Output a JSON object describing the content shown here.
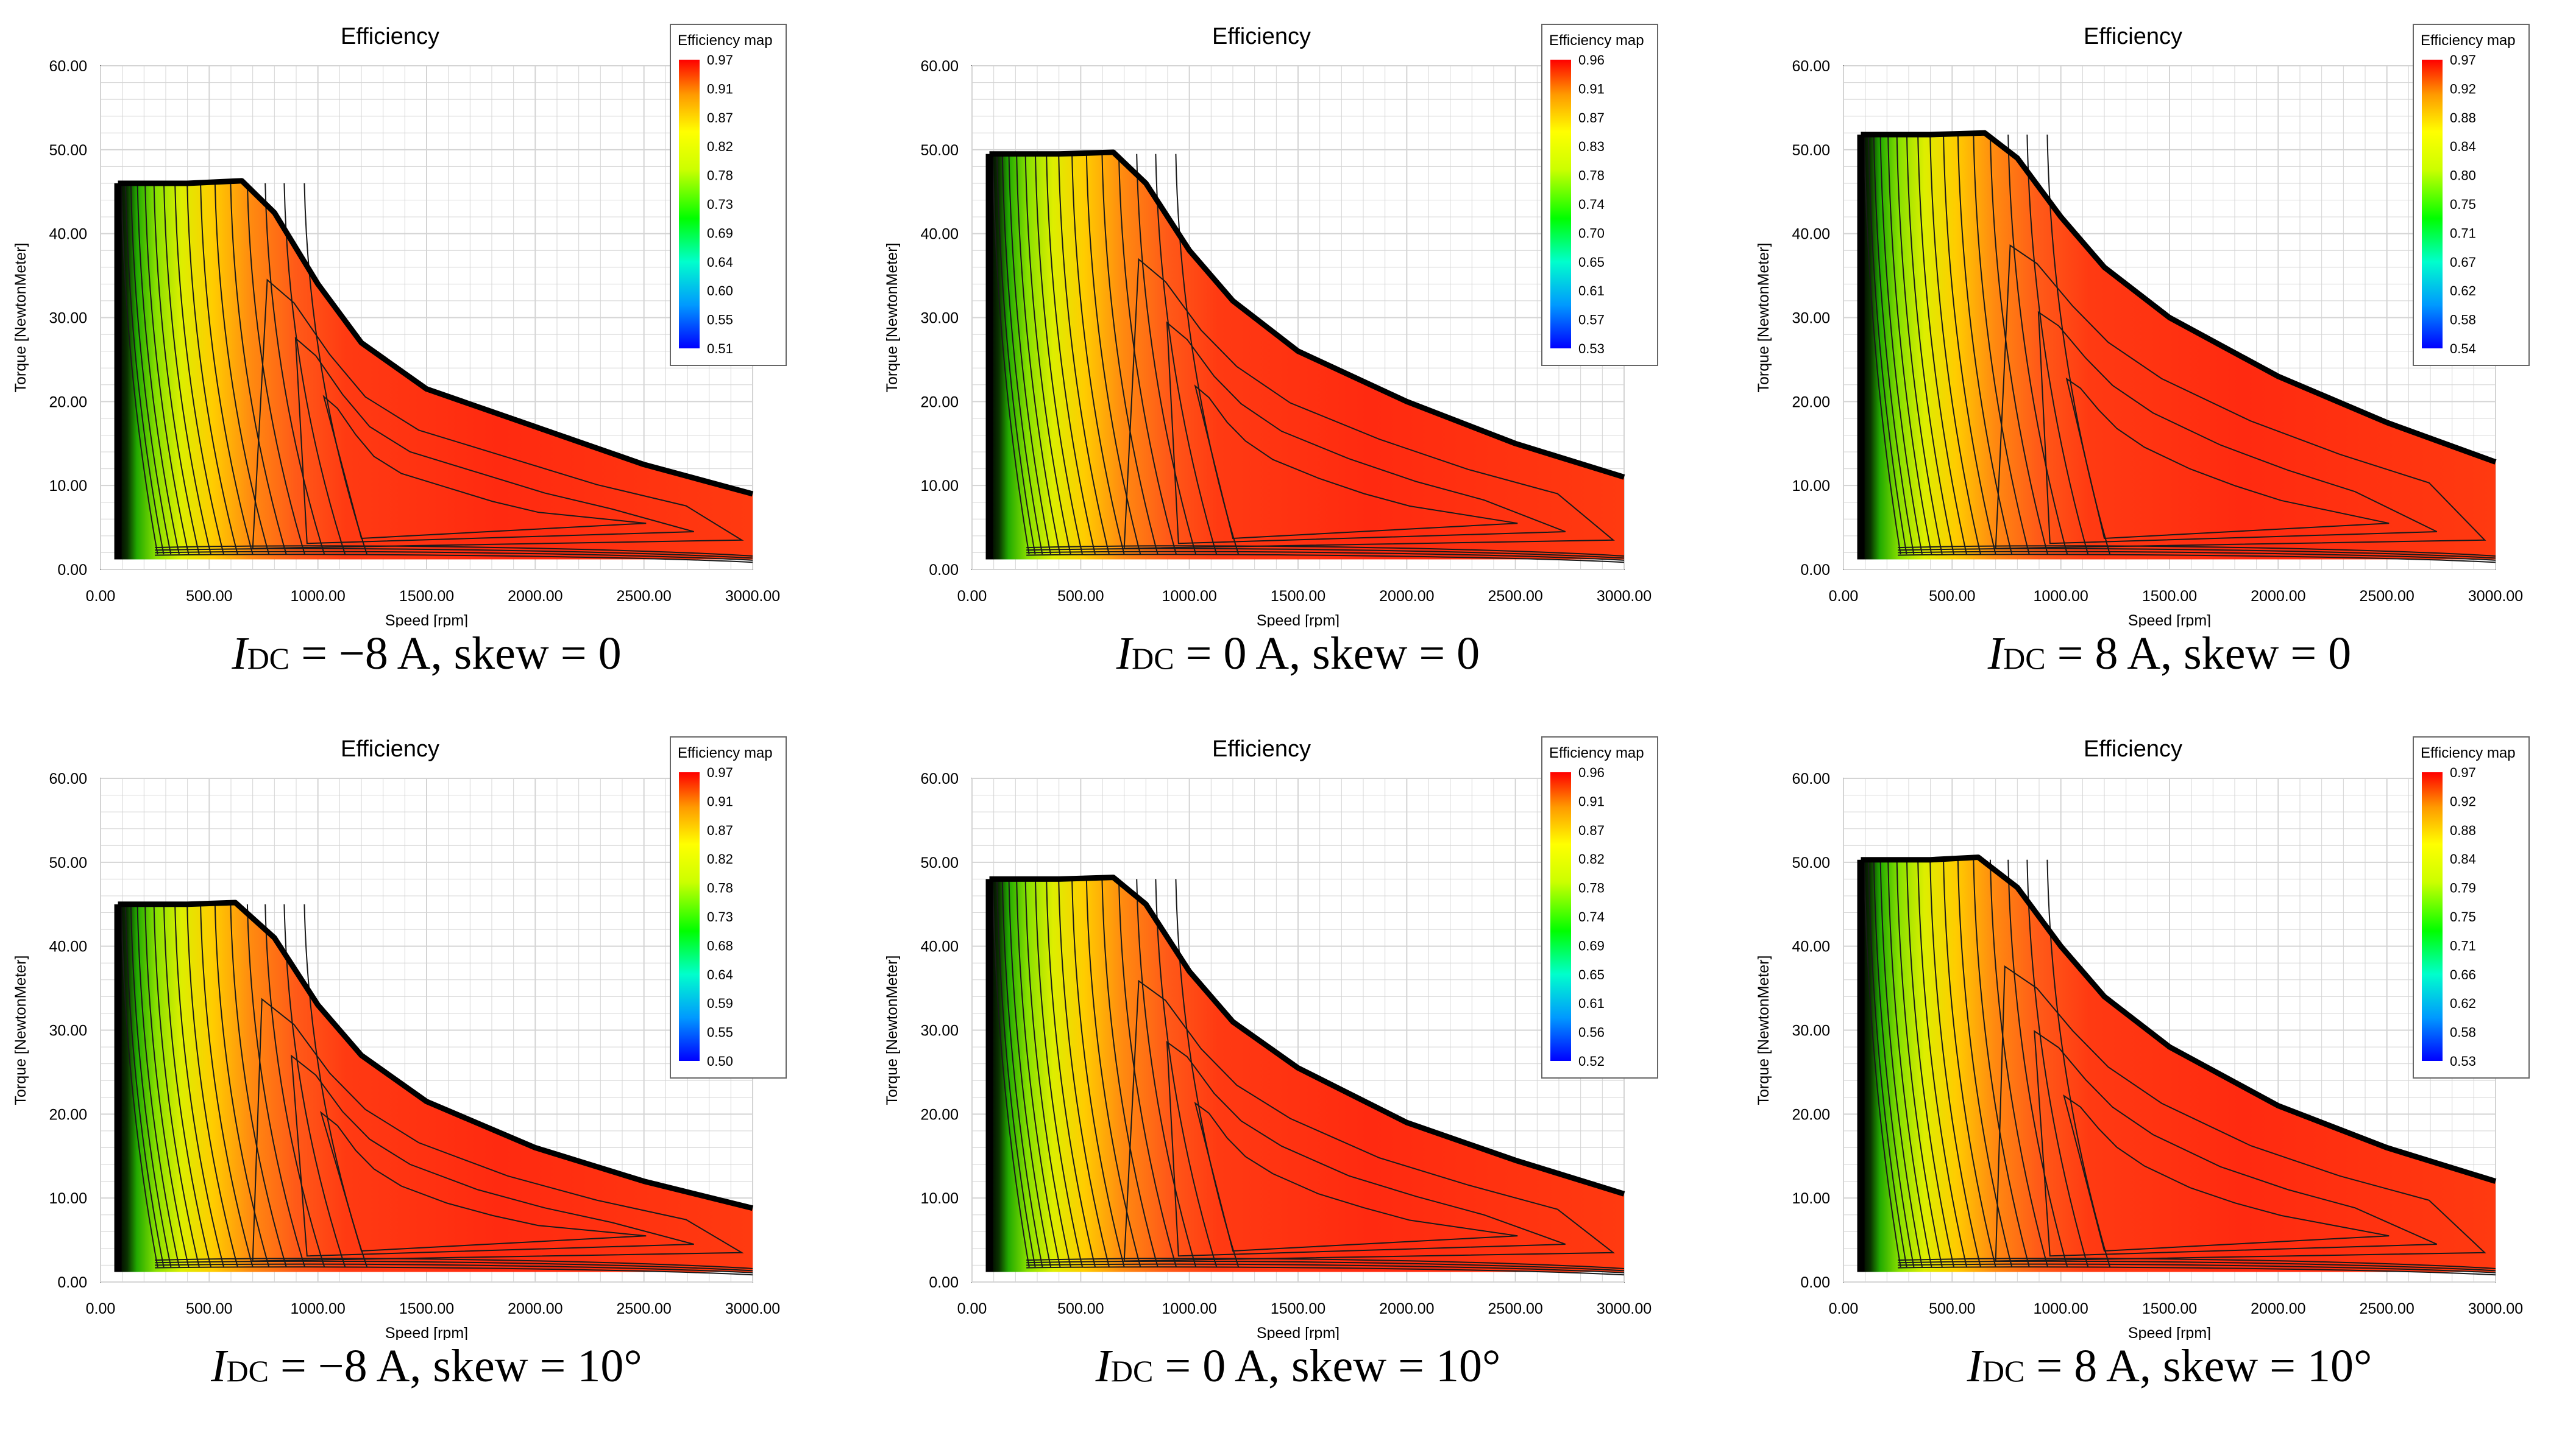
{
  "chart_data": [
    {
      "type": "heatmap",
      "title": "Efficiency",
      "xlabel": "Speed [rpm]",
      "ylabel": "Torque [NewtonMeter]",
      "xlim": [
        0,
        3000
      ],
      "ylim": [
        0,
        60
      ],
      "x_ticks": [
        "0.00",
        "500.00",
        "1000.00",
        "1500.00",
        "2000.00",
        "2500.00",
        "3000.00"
      ],
      "y_ticks": [
        "0.00",
        "10.00",
        "20.00",
        "30.00",
        "40.00",
        "50.00",
        "60.00"
      ],
      "legend_title": "Efficiency map",
      "legend_ticks": [
        "0.97",
        "0.91",
        "0.87",
        "0.82",
        "0.78",
        "0.73",
        "0.69",
        "0.64",
        "0.60",
        "0.55",
        "0.51"
      ],
      "legend_range": [
        0.51,
        0.97
      ],
      "max_torque_nm": 46,
      "torque_curve": [
        [
          80,
          46
        ],
        [
          400,
          46
        ],
        [
          650,
          46.3
        ],
        [
          800,
          42.5
        ],
        [
          1000,
          34
        ],
        [
          1200,
          27
        ],
        [
          1500,
          21.5
        ],
        [
          2000,
          17
        ],
        [
          2500,
          12.5
        ],
        [
          3000,
          9
        ]
      ],
      "caption": {
        "prefix": "I",
        "sub": "DC",
        "suffix": " = −8 A, skew = 0"
      }
    },
    {
      "type": "heatmap",
      "title": "Efficiency",
      "xlabel": "Speed [rpm]",
      "ylabel": "Torque [NewtonMeter]",
      "xlim": [
        0,
        3000
      ],
      "ylim": [
        0,
        60
      ],
      "x_ticks": [
        "0.00",
        "500.00",
        "1000.00",
        "1500.00",
        "2000.00",
        "2500.00",
        "3000.00"
      ],
      "y_ticks": [
        "0.00",
        "10.00",
        "20.00",
        "30.00",
        "40.00",
        "50.00",
        "60.00"
      ],
      "legend_title": "Efficiency map",
      "legend_ticks": [
        "0.96",
        "0.91",
        "0.87",
        "0.83",
        "0.78",
        "0.74",
        "0.70",
        "0.65",
        "0.61",
        "0.57",
        "0.53"
      ],
      "legend_range": [
        0.53,
        0.96
      ],
      "max_torque_nm": 49.5,
      "torque_curve": [
        [
          80,
          49.5
        ],
        [
          400,
          49.5
        ],
        [
          650,
          49.7
        ],
        [
          800,
          46
        ],
        [
          1000,
          38
        ],
        [
          1200,
          32
        ],
        [
          1500,
          26
        ],
        [
          2000,
          20
        ],
        [
          2500,
          15
        ],
        [
          3000,
          11
        ]
      ],
      "caption": {
        "prefix": "I",
        "sub": "DC",
        "suffix": " = 0 A, skew = 0"
      }
    },
    {
      "type": "heatmap",
      "title": "Efficiency",
      "xlabel": "Speed [rpm]",
      "ylabel": "Torque [NewtonMeter]",
      "xlim": [
        0,
        3000
      ],
      "ylim": [
        0,
        60
      ],
      "x_ticks": [
        "0.00",
        "500.00",
        "1000.00",
        "1500.00",
        "2000.00",
        "2500.00",
        "3000.00"
      ],
      "y_ticks": [
        "0.00",
        "10.00",
        "20.00",
        "30.00",
        "40.00",
        "50.00",
        "60.00"
      ],
      "legend_title": "Efficiency map",
      "legend_ticks": [
        "0.97",
        "0.92",
        "0.88",
        "0.84",
        "0.80",
        "0.75",
        "0.71",
        "0.67",
        "0.62",
        "0.58",
        "0.54"
      ],
      "legend_range": [
        0.54,
        0.97
      ],
      "max_torque_nm": 51.8,
      "torque_curve": [
        [
          80,
          51.8
        ],
        [
          400,
          51.8
        ],
        [
          650,
          52
        ],
        [
          800,
          49
        ],
        [
          1000,
          42
        ],
        [
          1200,
          36
        ],
        [
          1500,
          30
        ],
        [
          2000,
          23
        ],
        [
          2500,
          17.5
        ],
        [
          3000,
          12.8
        ]
      ],
      "caption": {
        "prefix": "I",
        "sub": "DC",
        "suffix": " = 8 A, skew = 0"
      }
    },
    {
      "type": "heatmap",
      "title": "Efficiency",
      "xlabel": "Speed [rpm]",
      "ylabel": "Torque [NewtonMeter]",
      "xlim": [
        0,
        3000
      ],
      "ylim": [
        0,
        60
      ],
      "x_ticks": [
        "0.00",
        "500.00",
        "1000.00",
        "1500.00",
        "2000.00",
        "2500.00",
        "3000.00"
      ],
      "y_ticks": [
        "0.00",
        "10.00",
        "20.00",
        "30.00",
        "40.00",
        "50.00",
        "60.00"
      ],
      "legend_title": "Efficiency map",
      "legend_ticks": [
        "0.97",
        "0.91",
        "0.87",
        "0.82",
        "0.78",
        "0.73",
        "0.68",
        "0.64",
        "0.59",
        "0.55",
        "0.50"
      ],
      "legend_range": [
        0.5,
        0.97
      ],
      "max_torque_nm": 45,
      "torque_curve": [
        [
          80,
          45
        ],
        [
          400,
          45
        ],
        [
          620,
          45.2
        ],
        [
          800,
          41
        ],
        [
          1000,
          33
        ],
        [
          1200,
          27
        ],
        [
          1500,
          21.5
        ],
        [
          2000,
          16
        ],
        [
          2500,
          12
        ],
        [
          3000,
          8.8
        ]
      ],
      "caption": {
        "prefix": "I",
        "sub": "DC",
        "suffix": " = −8 A, skew = 10°"
      }
    },
    {
      "type": "heatmap",
      "title": "Efficiency",
      "xlabel": "Speed [rpm]",
      "ylabel": "Torque [NewtonMeter]",
      "xlim": [
        0,
        3000
      ],
      "ylim": [
        0,
        60
      ],
      "x_ticks": [
        "0.00",
        "500.00",
        "1000.00",
        "1500.00",
        "2000.00",
        "2500.00",
        "3000.00"
      ],
      "y_ticks": [
        "0.00",
        "10.00",
        "20.00",
        "30.00",
        "40.00",
        "50.00",
        "60.00"
      ],
      "legend_title": "Efficiency map",
      "legend_ticks": [
        "0.96",
        "0.91",
        "0.87",
        "0.82",
        "0.78",
        "0.74",
        "0.69",
        "0.65",
        "0.61",
        "0.56",
        "0.52"
      ],
      "legend_range": [
        0.52,
        0.96
      ],
      "max_torque_nm": 48,
      "torque_curve": [
        [
          80,
          48
        ],
        [
          400,
          48
        ],
        [
          650,
          48.2
        ],
        [
          800,
          45
        ],
        [
          1000,
          37
        ],
        [
          1200,
          31
        ],
        [
          1500,
          25.5
        ],
        [
          2000,
          19
        ],
        [
          2500,
          14.5
        ],
        [
          3000,
          10.5
        ]
      ],
      "caption": {
        "prefix": "I",
        "sub": "DC",
        "suffix": " = 0 A, skew = 10°"
      }
    },
    {
      "type": "heatmap",
      "title": "Efficiency",
      "xlabel": "Speed [rpm]",
      "ylabel": "Torque [NewtonMeter]",
      "xlim": [
        0,
        3000
      ],
      "ylim": [
        0,
        60
      ],
      "x_ticks": [
        "0.00",
        "500.00",
        "1000.00",
        "1500.00",
        "2000.00",
        "2500.00",
        "3000.00"
      ],
      "y_ticks": [
        "0.00",
        "10.00",
        "20.00",
        "30.00",
        "40.00",
        "50.00",
        "60.00"
      ],
      "legend_title": "Efficiency map",
      "legend_ticks": [
        "0.97",
        "0.92",
        "0.88",
        "0.84",
        "0.79",
        "0.75",
        "0.71",
        "0.66",
        "0.62",
        "0.58",
        "0.53"
      ],
      "legend_range": [
        0.53,
        0.97
      ],
      "max_torque_nm": 50.3,
      "torque_curve": [
        [
          80,
          50.3
        ],
        [
          400,
          50.3
        ],
        [
          620,
          50.6
        ],
        [
          800,
          47
        ],
        [
          1000,
          40
        ],
        [
          1200,
          34
        ],
        [
          1500,
          28
        ],
        [
          2000,
          21
        ],
        [
          2500,
          16
        ],
        [
          3000,
          12
        ]
      ],
      "caption": {
        "prefix": "I",
        "sub": "DC",
        "suffix": " = 8 A, skew = 10°"
      }
    }
  ]
}
